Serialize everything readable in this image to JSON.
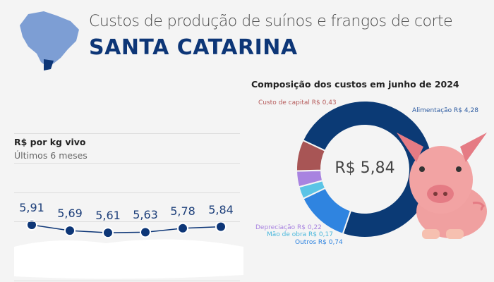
{
  "header": {
    "subtitle": "Custos de produção de suínos e frangos de corte",
    "title": "SANTA CATARINA"
  },
  "chart_data": [
    {
      "type": "line",
      "title": "R$ por kg vivo",
      "subtitle": "Últimos 6 meses",
      "values": [
        5.91,
        5.69,
        5.61,
        5.63,
        5.78,
        5.84
      ],
      "labels": [
        "5,91",
        "5,69",
        "5,61",
        "5,63",
        "5,78",
        "5,84"
      ],
      "color": "#0d3677"
    },
    {
      "type": "pie",
      "title": "Composição dos custos em junho de 2024",
      "center_label": "R$ 5,84",
      "slices": [
        {
          "name": "Alimentação",
          "value": 4.28,
          "label": "Alimentação R$ 4,28",
          "color": "#0b3a75"
        },
        {
          "name": "Outros",
          "value": 0.74,
          "label": "Outros R$ 0,74",
          "color": "#2f84e0"
        },
        {
          "name": "Mão de obra",
          "value": 0.17,
          "label": "Mão de obra R$ 0,17",
          "color": "#5bc4e6"
        },
        {
          "name": "Depreciação",
          "value": 0.22,
          "label": "Depreciação R$ 0,22",
          "color": "#a883e0"
        },
        {
          "name": "Custo de capital",
          "value": 0.43,
          "label": "Custo de capital R$ 0,43",
          "color": "#a85555"
        }
      ]
    }
  ]
}
